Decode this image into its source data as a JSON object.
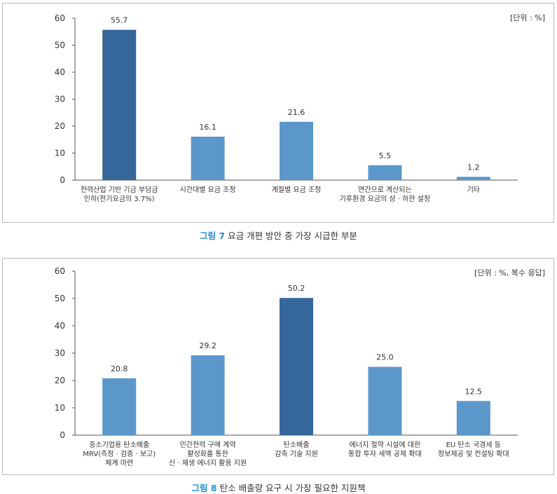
{
  "chart_data": [
    {
      "type": "bar",
      "unit_label": "[단위 : %]",
      "caption_number": "그림 7",
      "caption_text": "요금 개편 방안 중 가장 시급한 부분",
      "categories": [
        [
          "전력산업 기반 기금 부담금",
          "인하(전기요금의 3.7%)"
        ],
        [
          "시간대별 요금 조정"
        ],
        [
          "계절별 요금 조정"
        ],
        [
          "연간으로 계산되는",
          "기후환경 요금의 상 · 하한 설정"
        ],
        [
          "기타"
        ]
      ],
      "values": [
        55.7,
        16.1,
        21.6,
        5.5,
        1.2
      ],
      "value_labels": [
        "55.7",
        "16.1",
        "21.6",
        "5.5",
        "1.2"
      ],
      "highlight_index": 0,
      "yticks": [
        0,
        10,
        20,
        30,
        40,
        50,
        60
      ],
      "ytick_labels": [
        "0",
        "10",
        "20",
        "30",
        "40",
        "50",
        "60"
      ],
      "ylim": [
        0,
        60
      ]
    },
    {
      "type": "bar",
      "unit_label": "[단위 : %, 복수 응답]",
      "caption_number": "그림 8",
      "caption_text": "탄소 배출량 요구 시 가장 필요한 지원책",
      "categories": [
        [
          "중소기업용 탄소배출",
          "MRV(측정 · 검증 · 보고)",
          "체계 마련"
        ],
        [
          "민간전력 구매 계약",
          "활성화를 통한",
          "신 · 재생 에너지 활용 지원"
        ],
        [
          "탄소배출",
          "감축 기술 지원"
        ],
        [
          "에너지 절약 시설에 대한",
          "통합 투자 세액 공제 확대"
        ],
        [
          "EU 탄소 국경세 등",
          "정보제공 및 컨설팅 확대"
        ]
      ],
      "values": [
        20.8,
        29.2,
        50.2,
        25.0,
        12.5
      ],
      "value_labels": [
        "20.8",
        "29.2",
        "50.2",
        "25.0",
        "12.5"
      ],
      "highlight_index": 2,
      "yticks": [
        0,
        10,
        20,
        30,
        40,
        50,
        60
      ],
      "ytick_labels": [
        "0",
        "10",
        "20",
        "30",
        "40",
        "50",
        "60"
      ],
      "ylim": [
        0,
        60
      ]
    }
  ],
  "colors": {
    "bar": "#5b97ca",
    "bar_highlight": "#35679a",
    "axis": "#555555",
    "caption_accent": "#1f8fd6"
  }
}
